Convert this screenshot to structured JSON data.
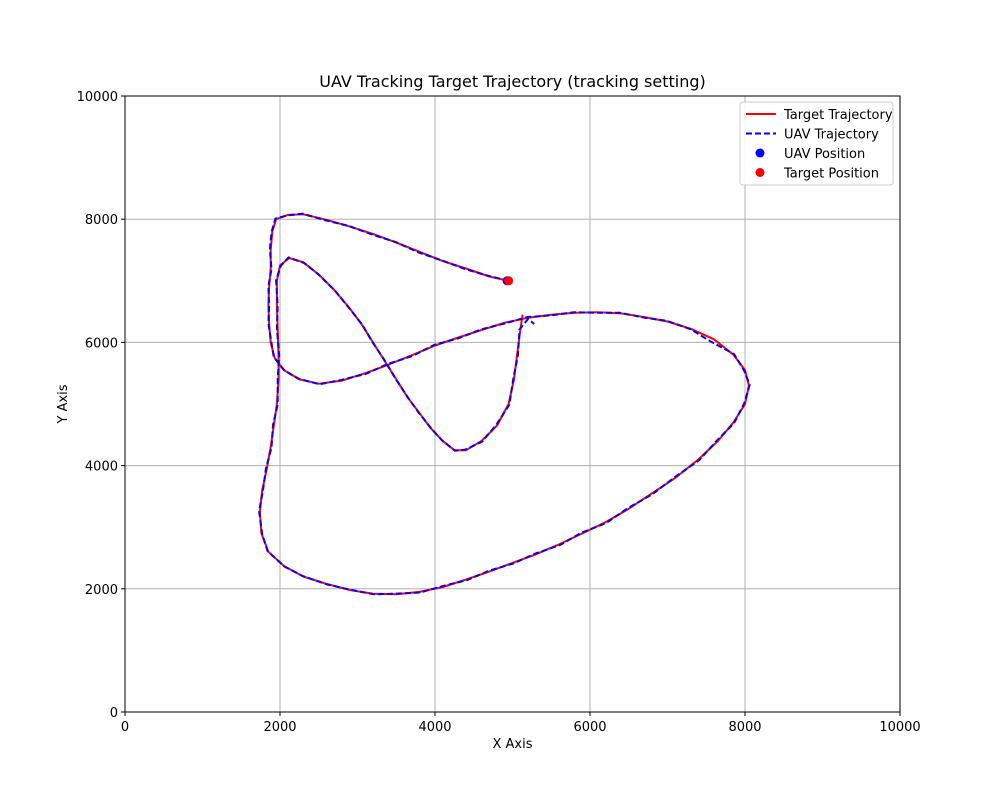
{
  "chart_data": {
    "type": "line",
    "title": "UAV Tracking Target Trajectory (tracking setting)",
    "xlabel": "X Axis",
    "ylabel": "Y Axis",
    "xlim": [
      0,
      10000
    ],
    "ylim": [
      0,
      10000
    ],
    "xticks": [
      "0",
      "2000",
      "4000",
      "6000",
      "8000",
      "10000"
    ],
    "yticks": [
      "0",
      "2000",
      "4000",
      "6000",
      "8000",
      "10000"
    ],
    "grid": true,
    "legend_position": "top-right",
    "series": [
      {
        "name": "Target Trajectory",
        "style": "solid",
        "color": "#ff0000",
        "points": [
          [
            4950,
            7000
          ],
          [
            4700,
            7070
          ],
          [
            4400,
            7200
          ],
          [
            4100,
            7320
          ],
          [
            3800,
            7470
          ],
          [
            3500,
            7620
          ],
          [
            3200,
            7760
          ],
          [
            2900,
            7880
          ],
          [
            2600,
            7990
          ],
          [
            2300,
            8080
          ],
          [
            2100,
            8070
          ],
          [
            1950,
            8000
          ],
          [
            1900,
            7800
          ],
          [
            1880,
            7500
          ],
          [
            1880,
            7200
          ],
          [
            1860,
            6900
          ],
          [
            1850,
            6600
          ],
          [
            1860,
            6300
          ],
          [
            1880,
            6000
          ],
          [
            1930,
            5750
          ],
          [
            2050,
            5550
          ],
          [
            2250,
            5400
          ],
          [
            2500,
            5330
          ],
          [
            2800,
            5380
          ],
          [
            3100,
            5500
          ],
          [
            3400,
            5640
          ],
          [
            3700,
            5790
          ],
          [
            4000,
            5950
          ],
          [
            4300,
            6080
          ],
          [
            4600,
            6200
          ],
          [
            4900,
            6320
          ],
          [
            5200,
            6400
          ],
          [
            5500,
            6450
          ],
          [
            5800,
            6480
          ],
          [
            6100,
            6490
          ],
          [
            6400,
            6470
          ],
          [
            6700,
            6410
          ],
          [
            7000,
            6340
          ],
          [
            7300,
            6220
          ],
          [
            7600,
            6050
          ],
          [
            7850,
            5800
          ],
          [
            8000,
            5550
          ],
          [
            8050,
            5300
          ],
          [
            8000,
            5000
          ],
          [
            7850,
            4700
          ],
          [
            7650,
            4400
          ],
          [
            7400,
            4100
          ],
          [
            7100,
            3800
          ],
          [
            6800,
            3550
          ],
          [
            6500,
            3300
          ],
          [
            6200,
            3080
          ],
          [
            5900,
            2900
          ],
          [
            5600,
            2720
          ],
          [
            5300,
            2560
          ],
          [
            5000,
            2420
          ],
          [
            4700,
            2280
          ],
          [
            4400,
            2150
          ],
          [
            4100,
            2030
          ],
          [
            3800,
            1950
          ],
          [
            3500,
            1910
          ],
          [
            3200,
            1920
          ],
          [
            2900,
            1980
          ],
          [
            2600,
            2080
          ],
          [
            2300,
            2200
          ],
          [
            2050,
            2370
          ],
          [
            1850,
            2600
          ],
          [
            1760,
            2900
          ],
          [
            1740,
            3250
          ],
          [
            1770,
            3600
          ],
          [
            1830,
            3950
          ],
          [
            1880,
            4300
          ],
          [
            1920,
            4650
          ],
          [
            1960,
            5000
          ],
          [
            1980,
            5400
          ],
          [
            1980,
            5800
          ],
          [
            1970,
            6200
          ],
          [
            1960,
            6600
          ],
          [
            1960,
            7000
          ],
          [
            2000,
            7250
          ],
          [
            2120,
            7370
          ],
          [
            2300,
            7300
          ],
          [
            2500,
            7100
          ],
          [
            2700,
            6850
          ],
          [
            2900,
            6550
          ],
          [
            3050,
            6300
          ],
          [
            3200,
            6000
          ],
          [
            3350,
            5700
          ],
          [
            3500,
            5400
          ],
          [
            3650,
            5100
          ],
          [
            3800,
            4850
          ],
          [
            3950,
            4600
          ],
          [
            4100,
            4400
          ],
          [
            4250,
            4250
          ],
          [
            4400,
            4250
          ],
          [
            4600,
            4400
          ],
          [
            4800,
            4650
          ],
          [
            4950,
            5000
          ],
          [
            5020,
            5400
          ],
          [
            5060,
            5800
          ],
          [
            5100,
            6200
          ],
          [
            5130,
            6450
          ]
        ]
      },
      {
        "name": "UAV Trajectory",
        "style": "dashed",
        "color": "#0000ff",
        "points": [
          [
            4950,
            7000
          ],
          [
            4690,
            7080
          ],
          [
            4390,
            7190
          ],
          [
            4090,
            7330
          ],
          [
            3790,
            7460
          ],
          [
            3490,
            7630
          ],
          [
            3190,
            7750
          ],
          [
            2890,
            7890
          ],
          [
            2590,
            7980
          ],
          [
            2290,
            8090
          ],
          [
            2090,
            8060
          ],
          [
            1940,
            8010
          ],
          [
            1890,
            7790
          ],
          [
            1870,
            7510
          ],
          [
            1890,
            7190
          ],
          [
            1850,
            6910
          ],
          [
            1860,
            6590
          ],
          [
            1850,
            6310
          ],
          [
            1890,
            5990
          ],
          [
            1920,
            5760
          ],
          [
            2060,
            5540
          ],
          [
            2240,
            5410
          ],
          [
            2510,
            5320
          ],
          [
            2790,
            5390
          ],
          [
            3110,
            5490
          ],
          [
            3390,
            5650
          ],
          [
            3710,
            5780
          ],
          [
            3990,
            5960
          ],
          [
            4310,
            6070
          ],
          [
            4590,
            6210
          ],
          [
            4910,
            6310
          ],
          [
            5190,
            6410
          ],
          [
            5510,
            6440
          ],
          [
            5790,
            6490
          ],
          [
            6110,
            6480
          ],
          [
            6390,
            6480
          ],
          [
            6710,
            6400
          ],
          [
            6990,
            6350
          ],
          [
            7310,
            6210
          ],
          [
            7520,
            6040
          ],
          [
            7860,
            5810
          ],
          [
            7990,
            5540
          ],
          [
            8060,
            5310
          ],
          [
            7990,
            5010
          ],
          [
            7860,
            4690
          ],
          [
            7640,
            4410
          ],
          [
            7410,
            4090
          ],
          [
            7090,
            3810
          ],
          [
            6810,
            3540
          ],
          [
            6490,
            3310
          ],
          [
            6210,
            3070
          ],
          [
            5890,
            2910
          ],
          [
            5610,
            2710
          ],
          [
            5290,
            2570
          ],
          [
            5010,
            2410
          ],
          [
            4690,
            2290
          ],
          [
            4410,
            2140
          ],
          [
            4090,
            2040
          ],
          [
            3810,
            1940
          ],
          [
            3490,
            1920
          ],
          [
            3210,
            1910
          ],
          [
            2890,
            1990
          ],
          [
            2610,
            2070
          ],
          [
            2290,
            2210
          ],
          [
            2060,
            2360
          ],
          [
            1840,
            2610
          ],
          [
            1770,
            2890
          ],
          [
            1730,
            3260
          ],
          [
            1780,
            3590
          ],
          [
            1820,
            3960
          ],
          [
            1890,
            4290
          ],
          [
            1910,
            4660
          ],
          [
            1970,
            4990
          ],
          [
            1970,
            5410
          ],
          [
            1990,
            5790
          ],
          [
            1960,
            6210
          ],
          [
            1970,
            6590
          ],
          [
            1950,
            7010
          ],
          [
            2010,
            7240
          ],
          [
            2110,
            7380
          ],
          [
            2310,
            7290
          ],
          [
            2490,
            7110
          ],
          [
            2710,
            6840
          ],
          [
            2890,
            6560
          ],
          [
            3060,
            6290
          ],
          [
            3190,
            6010
          ],
          [
            3360,
            5690
          ],
          [
            3490,
            5410
          ],
          [
            3660,
            5090
          ],
          [
            3790,
            4860
          ],
          [
            3960,
            4590
          ],
          [
            4090,
            4410
          ],
          [
            4260,
            4240
          ],
          [
            4390,
            4260
          ],
          [
            4610,
            4390
          ],
          [
            4790,
            4660
          ],
          [
            4960,
            4990
          ],
          [
            5010,
            5410
          ],
          [
            5070,
            5790
          ],
          [
            5090,
            6210
          ],
          [
            5200,
            6380
          ],
          [
            5280,
            6300
          ]
        ]
      }
    ],
    "markers": [
      {
        "name": "UAV Position",
        "color": "#0000ff",
        "x": 4930,
        "y": 7000
      },
      {
        "name": "Target Position",
        "color": "#ff0000",
        "x": 4950,
        "y": 7000
      }
    ]
  }
}
